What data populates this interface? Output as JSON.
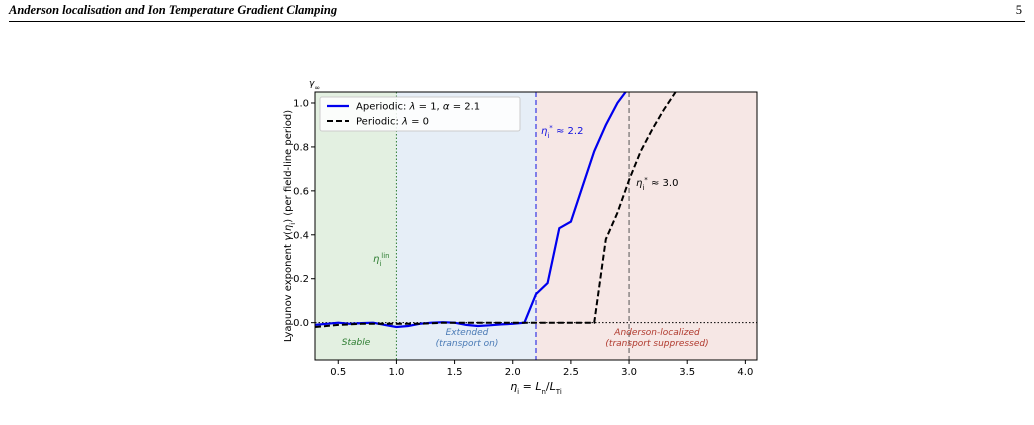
{
  "header": {
    "running_title": "Anderson localisation and Ion Temperature Gradient Clamping",
    "page_number": "5"
  },
  "chart_data": {
    "type": "line",
    "ylabel_corner": "γ",
    "ylabel_corner_sub": "∞",
    "xlabel": "η_i = L_n/L_{T_i}",
    "ylabel": "Lyapunov exponent γ(η_i)  (per field-line period)",
    "xlim": [
      0.3,
      4.1
    ],
    "ylim": [
      -0.17,
      1.05
    ],
    "x_ticks": [
      0.5,
      1.0,
      1.5,
      2.0,
      2.5,
      3.0,
      3.5,
      4.0
    ],
    "x_tick_labels": [
      "0.5",
      "1.0",
      "1.5",
      "2.0",
      "2.5",
      "3.0",
      "3.5",
      "4.0"
    ],
    "y_ticks": [
      0.0,
      0.2,
      0.4,
      0.6,
      0.8,
      1.0
    ],
    "y_tick_labels": [
      "0.0",
      "0.2",
      "0.4",
      "0.6",
      "0.8",
      "1.0"
    ],
    "regions": [
      {
        "label": "Stable",
        "from": 0.3,
        "to": 1.0,
        "color": "#e3f0e1",
        "text_color": "#2e7d32"
      },
      {
        "label": "Extended\n(transport on)",
        "from": 1.0,
        "to": 2.2,
        "color": "#e6eef7",
        "text_color": "#4a7ab5"
      },
      {
        "label": "Anderson-localized\n(transport suppressed)",
        "from": 2.2,
        "to": 4.1,
        "color": "#f6e7e5",
        "text_color": "#b03a2e"
      }
    ],
    "thresholds": [
      {
        "label": "η_i^lin",
        "x": 1.0,
        "color": "#2e7d32",
        "style": "dotted"
      },
      {
        "label": "η_i^* ≈ 2.2",
        "x": 2.2,
        "color": "#1010e0",
        "style": "dashed"
      },
      {
        "label": "η_i^* ≈ 3.0",
        "x": 3.0,
        "color": "#555555",
        "style": "dashed"
      }
    ],
    "series": [
      {
        "name": "Aperiodic: λ = 1, α = 2.1",
        "color": "#0000ee",
        "dash": "solid",
        "x": [
          0.3,
          0.4,
          0.5,
          0.6,
          0.7,
          0.8,
          0.9,
          1.0,
          1.1,
          1.2,
          1.3,
          1.4,
          1.5,
          1.6,
          1.7,
          1.8,
          1.9,
          2.0,
          2.1,
          2.2,
          2.3,
          2.4,
          2.5,
          2.6,
          2.7,
          2.8,
          2.9,
          2.97
        ],
        "y": [
          -0.01,
          -0.005,
          0.0,
          -0.005,
          -0.002,
          0.0,
          -0.01,
          -0.02,
          -0.015,
          -0.005,
          0.0,
          0.002,
          0.0,
          -0.01,
          -0.015,
          -0.012,
          -0.008,
          -0.005,
          0.0,
          0.13,
          0.18,
          0.43,
          0.46,
          0.62,
          0.78,
          0.9,
          1.0,
          1.05
        ]
      },
      {
        "name": "Periodic: λ = 0",
        "color": "#000000",
        "dash": "dashed",
        "x": [
          0.3,
          0.5,
          0.7,
          0.9,
          1.0,
          1.2,
          1.4,
          1.6,
          1.8,
          2.0,
          2.2,
          2.4,
          2.6,
          2.7,
          2.8,
          2.9,
          3.0,
          3.1,
          3.2,
          3.3,
          3.4
        ],
        "y": [
          -0.02,
          -0.01,
          -0.005,
          -0.005,
          -0.005,
          -0.005,
          0.0,
          0.0,
          0.0,
          0.0,
          0.0,
          0.0,
          0.0,
          0.0,
          0.38,
          0.5,
          0.65,
          0.78,
          0.88,
          0.97,
          1.05
        ]
      }
    ],
    "reference_line": {
      "y": 0.0,
      "style": "dotted"
    },
    "legend_position": "top-left",
    "grid": false
  }
}
